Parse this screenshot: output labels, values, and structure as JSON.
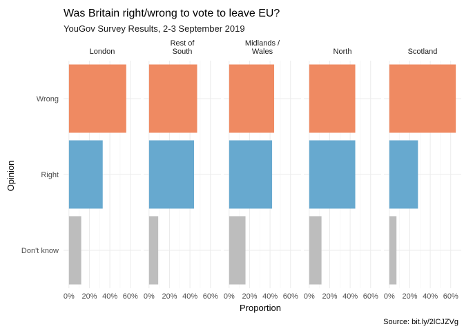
{
  "chart_data": {
    "type": "bar",
    "orientation": "horizontal",
    "facets": true,
    "title": "Was Britain right/wrong to vote to leave EU?",
    "subtitle": "YouGov Survey Results, 2-3 September 2019",
    "caption": "Source: bit.ly/2lCJZVg",
    "xlabel": "Proportion",
    "ylabel": "Opinion",
    "xlim": [
      0,
      0.65
    ],
    "x_ticks": [
      0,
      0.2,
      0.4,
      0.6
    ],
    "x_tick_labels": [
      "0%",
      "20%",
      "40%",
      "60%"
    ],
    "categories": [
      "Wrong",
      "Right",
      "Don't know"
    ],
    "colors": {
      "Wrong": "#ef8a62",
      "Right": "#67a9cf",
      "Don't know": "#bdbdbd"
    },
    "grid": true,
    "panels": [
      {
        "name": [
          "London"
        ],
        "values": [
          0.56,
          0.33,
          0.12
        ]
      },
      {
        "name": [
          "Rest of",
          "South"
        ],
        "values": [
          0.47,
          0.44,
          0.09
        ]
      },
      {
        "name": [
          "Midlands /",
          "Wales"
        ],
        "values": [
          0.44,
          0.42,
          0.16
        ]
      },
      {
        "name": [
          "North"
        ],
        "values": [
          0.45,
          0.45,
          0.12
        ]
      },
      {
        "name": [
          "Scotland"
        ],
        "values": [
          0.65,
          0.28,
          0.07
        ]
      }
    ]
  }
}
